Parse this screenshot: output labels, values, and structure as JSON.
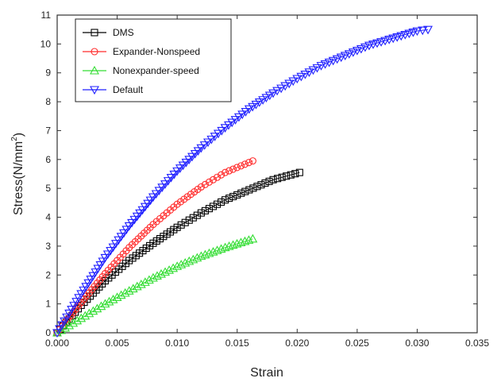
{
  "chart_data": {
    "type": "scatter",
    "title": "",
    "xlabel": "Strain",
    "ylabel_main": "Stress(N/mm",
    "ylabel_sup": "2",
    "ylabel_close": ")",
    "xlim": [
      0.0,
      0.035
    ],
    "ylim": [
      0,
      11
    ],
    "xticks": [
      0.0,
      0.005,
      0.01,
      0.015,
      0.02,
      0.025,
      0.03,
      0.035
    ],
    "xtick_labels": [
      "0.000",
      "0.005",
      "0.010",
      "0.015",
      "0.020",
      "0.025",
      "0.030",
      "0.035"
    ],
    "yticks": [
      0,
      1,
      2,
      3,
      4,
      5,
      6,
      7,
      8,
      9,
      10,
      11
    ],
    "ytick_labels": [
      "0",
      "1",
      "2",
      "3",
      "4",
      "5",
      "6",
      "7",
      "8",
      "9",
      "10",
      "11"
    ],
    "grid": false,
    "legend_position": "top-left",
    "series": [
      {
        "name": "DMS",
        "color": "#000000",
        "marker": "square",
        "points": [
          [
            0.0,
            0.0
          ],
          [
            0.002,
            0.95
          ],
          [
            0.004,
            1.8
          ],
          [
            0.006,
            2.5
          ],
          [
            0.008,
            3.1
          ],
          [
            0.01,
            3.65
          ],
          [
            0.012,
            4.15
          ],
          [
            0.014,
            4.6
          ],
          [
            0.016,
            4.95
          ],
          [
            0.018,
            5.3
          ],
          [
            0.0202,
            5.55
          ]
        ]
      },
      {
        "name": "Expander-Nonspeed",
        "color": "#ff2a2a",
        "marker": "circle",
        "points": [
          [
            0.0,
            0.0
          ],
          [
            0.002,
            1.05
          ],
          [
            0.004,
            2.05
          ],
          [
            0.006,
            2.95
          ],
          [
            0.008,
            3.75
          ],
          [
            0.01,
            4.45
          ],
          [
            0.012,
            5.05
          ],
          [
            0.014,
            5.55
          ],
          [
            0.0163,
            5.95
          ]
        ]
      },
      {
        "name": "Nonexpander-speed",
        "color": "#33dd33",
        "marker": "triangle-up",
        "points": [
          [
            0.0,
            0.0
          ],
          [
            0.002,
            0.5
          ],
          [
            0.004,
            1.0
          ],
          [
            0.006,
            1.45
          ],
          [
            0.008,
            1.9
          ],
          [
            0.01,
            2.3
          ],
          [
            0.012,
            2.65
          ],
          [
            0.014,
            2.95
          ],
          [
            0.0163,
            3.25
          ]
        ]
      },
      {
        "name": "Default",
        "color": "#2020ff",
        "marker": "triangle-down",
        "points": [
          [
            0.0,
            0.0
          ],
          [
            0.002,
            1.35
          ],
          [
            0.004,
            2.6
          ],
          [
            0.006,
            3.7
          ],
          [
            0.008,
            4.7
          ],
          [
            0.01,
            5.6
          ],
          [
            0.012,
            6.4
          ],
          [
            0.014,
            7.1
          ],
          [
            0.016,
            7.75
          ],
          [
            0.018,
            8.3
          ],
          [
            0.02,
            8.8
          ],
          [
            0.022,
            9.25
          ],
          [
            0.024,
            9.6
          ],
          [
            0.026,
            9.95
          ],
          [
            0.028,
            10.2
          ],
          [
            0.03,
            10.45
          ],
          [
            0.0309,
            10.5
          ]
        ]
      }
    ]
  }
}
